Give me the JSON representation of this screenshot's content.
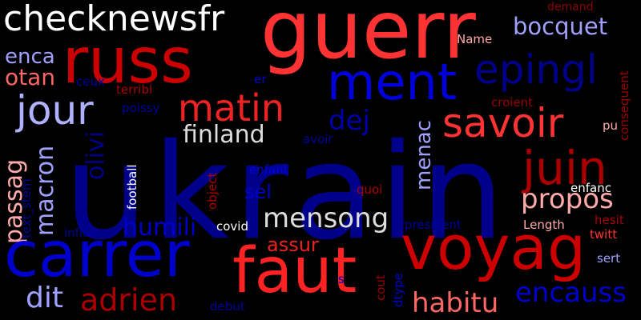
{
  "words": [
    {
      "id": "ukrain",
      "text": "ukrain",
      "color": "#00008b"
    },
    {
      "id": "guerr",
      "text": "guerr",
      "color": "#ff3333"
    },
    {
      "id": "russ",
      "text": "russ",
      "color": "#cc0000"
    },
    {
      "id": "checknewsfr",
      "text": "checknewsfr",
      "color": "#ffffff"
    },
    {
      "id": "ment",
      "text": "ment",
      "color": "#0000dd"
    },
    {
      "id": "epingl",
      "text": "epingl",
      "color": "#00008b"
    },
    {
      "id": "bocquet",
      "text": "bocquet",
      "color": "#a0a0ff"
    },
    {
      "id": "demand",
      "text": "demand",
      "color": "#8b0000"
    },
    {
      "id": "name",
      "text": "Name",
      "color": "#ffaaaa"
    },
    {
      "id": "jour",
      "text": "jour",
      "color": "#b0b0ff"
    },
    {
      "id": "matin",
      "text": "matin",
      "color": "#ee2222"
    },
    {
      "id": "savoir",
      "text": "savoir",
      "color": "#ff3333"
    },
    {
      "id": "juin",
      "text": "juin",
      "color": "#aa0000"
    },
    {
      "id": "enca",
      "text": "enca",
      "color": "#a0a0ff"
    },
    {
      "id": "otan",
      "text": "otan",
      "color": "#ff6666"
    },
    {
      "id": "ceux",
      "text": "ceux",
      "color": "#000099"
    },
    {
      "id": "terribl",
      "text": "terribl",
      "color": "#aa0000"
    },
    {
      "id": "poissy",
      "text": "poissy",
      "color": "#000099"
    },
    {
      "id": "er",
      "text": "er",
      "color": "#0000cc"
    },
    {
      "id": "croient",
      "text": "croient",
      "color": "#990000"
    },
    {
      "id": "consequent",
      "text": "consequent",
      "color": "#990000"
    },
    {
      "id": "pu",
      "text": "pu",
      "color": "#ffaaaa"
    },
    {
      "id": "dej",
      "text": "dej",
      "color": "#0000aa"
    },
    {
      "id": "finland",
      "text": "finland",
      "color": "#dddddd"
    },
    {
      "id": "avoir",
      "text": "avoir",
      "color": "#000099"
    },
    {
      "id": "menac",
      "text": "menac",
      "color": "#a0a0ff"
    },
    {
      "id": "passag",
      "text": "passag",
      "color": "#ffaaaa"
    },
    {
      "id": "macron",
      "text": "macron",
      "color": "#a0a0ff"
    },
    {
      "id": "olivi",
      "text": "olivi",
      "color": "#00008b"
    },
    {
      "id": "text_stem",
      "text": "text_stem",
      "color": "#000099"
    },
    {
      "id": "football",
      "text": "football",
      "color": "#ffffff"
    },
    {
      "id": "object",
      "text": "object",
      "color": "#aa0000"
    },
    {
      "id": "enfant",
      "text": "enfant",
      "color": "#0000dd"
    },
    {
      "id": "sel",
      "text": "sel",
      "color": "#0000cc"
    },
    {
      "id": "quoi",
      "text": "quoi",
      "color": "#aa0000"
    },
    {
      "id": "propos",
      "text": "propos",
      "color": "#ffaaaa"
    },
    {
      "id": "enfanc",
      "text": "enfanc",
      "color": "#ffffff"
    },
    {
      "id": "hesit",
      "text": "hesit",
      "color": "#aa0000"
    },
    {
      "id": "mensong",
      "text": "mensong",
      "color": "#dddddd"
    },
    {
      "id": "humili",
      "text": "humili",
      "color": "#0000cc"
    },
    {
      "id": "inflat",
      "text": "inflat",
      "color": "#000099"
    },
    {
      "id": "covid",
      "text": "covid",
      "color": "#ffffff"
    },
    {
      "id": "assur",
      "text": "assur",
      "color": "#ee2222"
    },
    {
      "id": "president",
      "text": "president",
      "color": "#000099"
    },
    {
      "id": "length",
      "text": "Length",
      "color": "#ffaaaa"
    },
    {
      "id": "twitt",
      "text": "twitt",
      "color": "#ff3333"
    },
    {
      "id": "carrer",
      "text": "carrer",
      "color": "#0000cc"
    },
    {
      "id": "faut",
      "text": "faut",
      "color": "#ff2222"
    },
    {
      "id": "voyag",
      "text": "voyag",
      "color": "#cc0000"
    },
    {
      "id": "sert",
      "text": "sert",
      "color": "#a0a0ff"
    },
    {
      "id": "s",
      "text": "s",
      "color": "#0000cc"
    },
    {
      "id": "cout",
      "text": "cout",
      "color": "#990000"
    },
    {
      "id": "dtype",
      "text": "dtype",
      "color": "#0000cc"
    },
    {
      "id": "habitu",
      "text": "habitu",
      "color": "#ff6666"
    },
    {
      "id": "encauss",
      "text": "encauss",
      "color": "#0000cc"
    },
    {
      "id": "dit",
      "text": "dit",
      "color": "#a0a0ff"
    },
    {
      "id": "adrien",
      "text": "adrien",
      "color": "#aa0000"
    },
    {
      "id": "debut",
      "text": "debut",
      "color": "#000099"
    }
  ]
}
